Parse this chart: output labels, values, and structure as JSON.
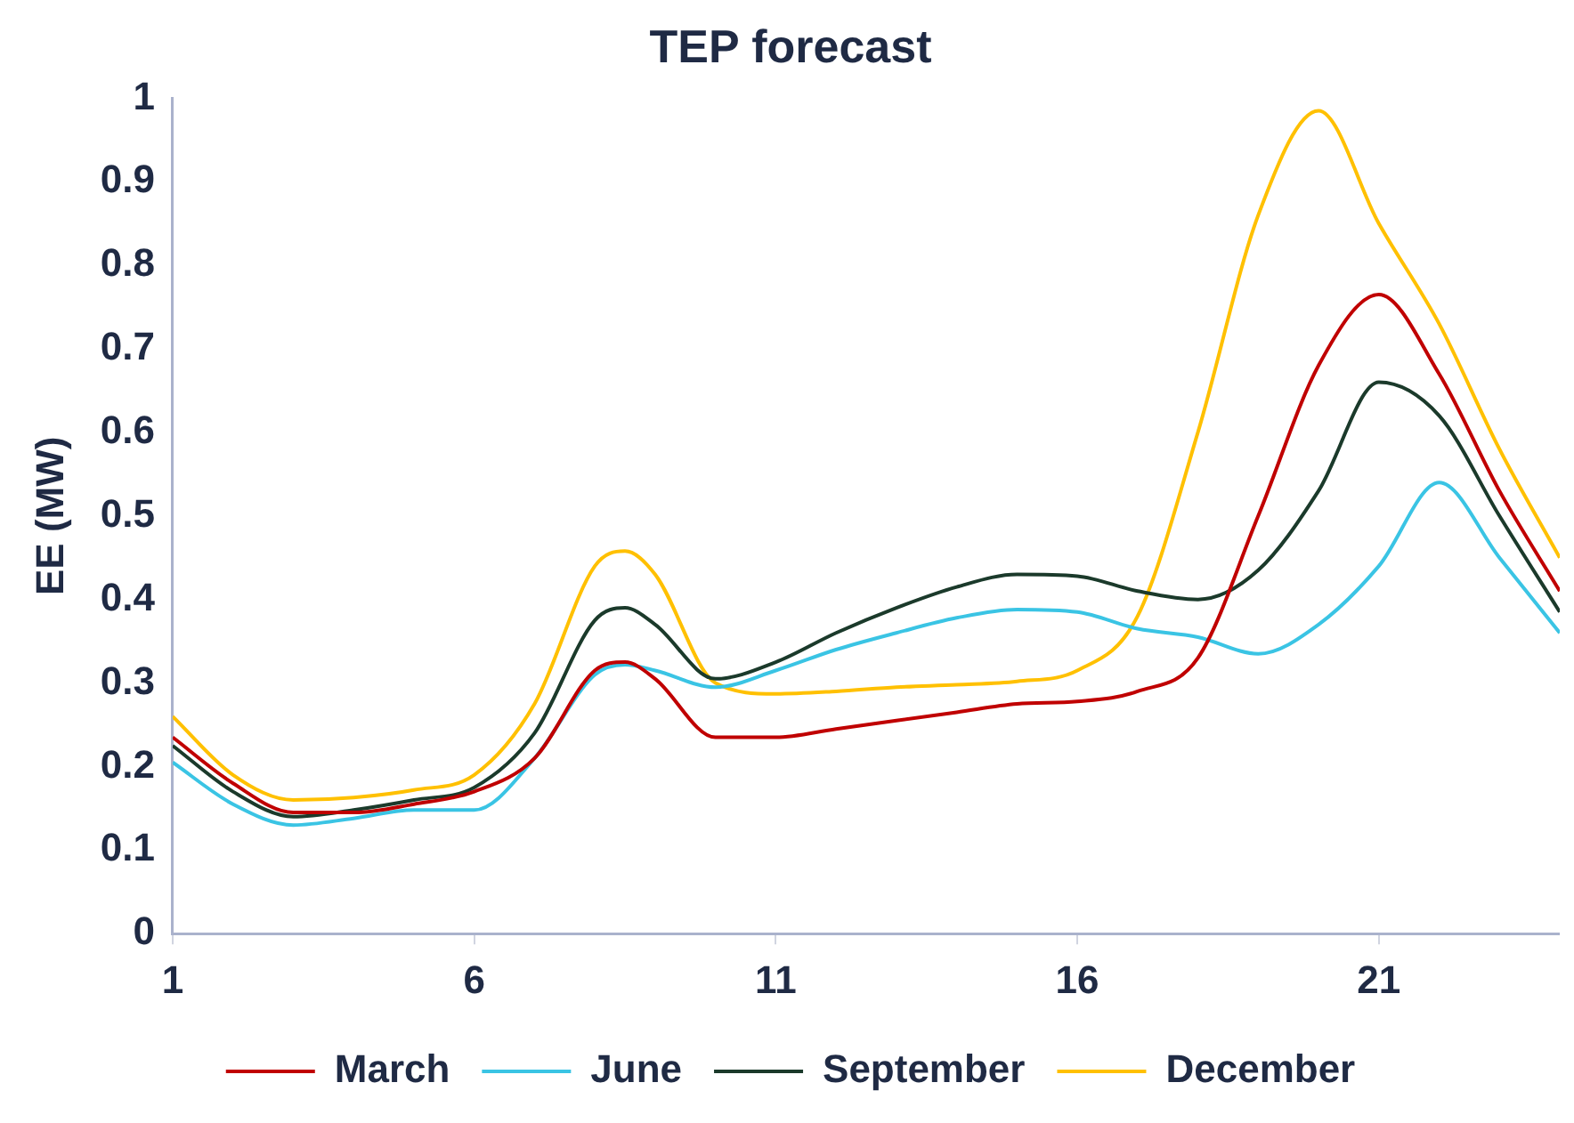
{
  "chart_data": {
    "type": "line",
    "title": "TEP forecast",
    "ylabel": "EE (MW)",
    "x": [
      1,
      2,
      3,
      4,
      5,
      6,
      7,
      8,
      8.5,
      9,
      10,
      11,
      12,
      13,
      14,
      15,
      16,
      17,
      18,
      19,
      20,
      21,
      22,
      23,
      24
    ],
    "series": [
      {
        "name": "March",
        "color": "#c00000",
        "values": [
          0.235,
          0.18,
          0.145,
          0.145,
          0.155,
          0.17,
          0.21,
          0.315,
          0.325,
          0.305,
          0.235,
          0.235,
          0.245,
          0.255,
          0.265,
          0.275,
          0.278,
          0.29,
          0.33,
          0.5,
          0.68,
          0.765,
          0.67,
          0.53,
          0.41
        ]
      },
      {
        "name": "June",
        "color": "#3ac4e4",
        "values": [
          0.205,
          0.155,
          0.13,
          0.138,
          0.148,
          0.148,
          0.21,
          0.31,
          0.322,
          0.315,
          0.295,
          0.315,
          0.34,
          0.36,
          0.378,
          0.388,
          0.385,
          0.365,
          0.355,
          0.335,
          0.37,
          0.44,
          0.54,
          0.45,
          0.36
        ]
      },
      {
        "name": "September",
        "color": "#1b3a2b",
        "values": [
          0.225,
          0.17,
          0.14,
          0.148,
          0.16,
          0.175,
          0.24,
          0.375,
          0.39,
          0.37,
          0.305,
          0.325,
          0.36,
          0.39,
          0.415,
          0.43,
          0.428,
          0.41,
          0.4,
          0.435,
          0.53,
          0.66,
          0.62,
          0.5,
          0.385
        ]
      },
      {
        "name": "December",
        "color": "#ffc000",
        "values": [
          0.26,
          0.19,
          0.16,
          0.163,
          0.172,
          0.19,
          0.275,
          0.44,
          0.458,
          0.43,
          0.3,
          0.287,
          0.29,
          0.295,
          0.298,
          0.302,
          0.315,
          0.38,
          0.6,
          0.86,
          0.985,
          0.85,
          0.73,
          0.58,
          0.45
        ]
      }
    ],
    "xlim": [
      1,
      24
    ],
    "xticks": [
      1,
      6,
      11,
      16,
      21
    ],
    "ylim": [
      0,
      1
    ],
    "yticks": [
      0,
      0.1,
      0.2,
      0.3,
      0.4,
      0.5,
      0.6,
      0.7,
      0.8,
      0.9,
      1
    ],
    "grid": false,
    "legend": "bottom",
    "marker": "none",
    "line_style": "solid"
  }
}
